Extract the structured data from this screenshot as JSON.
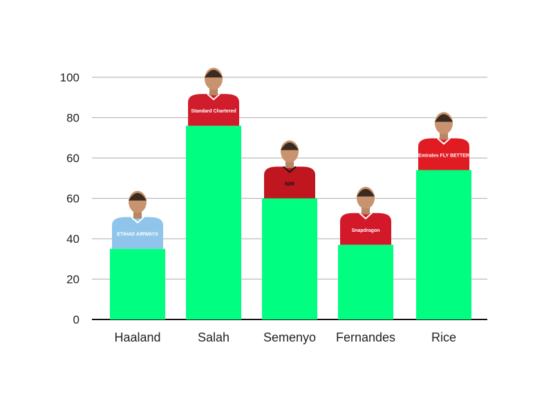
{
  "chart_data": {
    "type": "bar",
    "title": "",
    "xlabel": "",
    "ylabel": "",
    "categories": [
      "Haaland",
      "Salah",
      "Semenyo",
      "Fernandes",
      "Rice"
    ],
    "values": [
      35,
      96,
      60,
      37,
      74
    ],
    "yticks": [
      {
        "value": 0,
        "label": "0"
      },
      {
        "value": 20,
        "label": "20"
      },
      {
        "value": 40,
        "label": "40"
      },
      {
        "value": 60,
        "label": "60"
      },
      {
        "value": 80,
        "label": "80"
      },
      {
        "value": 100,
        "label": "100"
      }
    ],
    "ytick_misprint": {
      "after_value": 40,
      "label": "60"
    },
    "ylim": [
      0,
      120
    ],
    "grid": true,
    "legend": "none",
    "bar_color": "#00FF80",
    "gridline_color": "#bbbbbb",
    "axis_color": "#111111",
    "players": [
      {
        "name": "Haaland",
        "kit_colors": [
          "#8fc5ea",
          "#ffffff"
        ],
        "kit_text": "ETIHAD AIRWAYS"
      },
      {
        "name": "Salah",
        "kit_colors": [
          "#d11c2b",
          "#ffffff"
        ],
        "kit_text": "Standard Chartered"
      },
      {
        "name": "Semenyo",
        "kit_colors": [
          "#c0161f",
          "#151515"
        ],
        "kit_text": "bj88"
      },
      {
        "name": "Fernandes",
        "kit_colors": [
          "#d3182a",
          "#ffffff"
        ],
        "kit_text": "Snapdragon"
      },
      {
        "name": "Rice",
        "kit_colors": [
          "#e11b22",
          "#ffffff"
        ],
        "kit_text": "Emirates FLY BETTER"
      }
    ]
  }
}
